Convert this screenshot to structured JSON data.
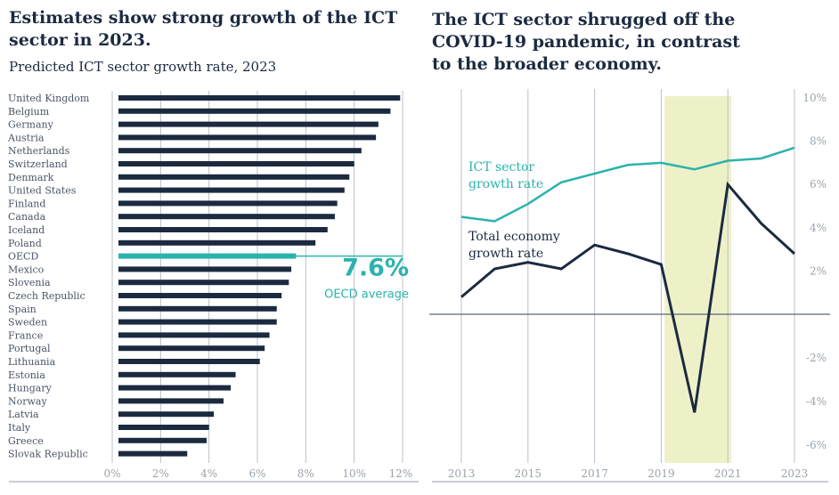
{
  "left_panel": {
    "title": "Estimates show strong growth of the ICT sector in 2023.",
    "subtitle": "Predicted ICT sector growth rate, 2023"
  },
  "right_panel": {
    "title": "The ICT sector shrugged off the COVID-19 pandemic, in contrast to the broader economy."
  },
  "colors": {
    "navy": "#1c2a40",
    "teal": "#2bb3ac",
    "highlight": "#eef1c8",
    "grid": "#b9c0c8"
  },
  "chart_data": [
    {
      "type": "bar",
      "orientation": "horizontal",
      "categories": [
        "United Kingdom",
        "Belgium",
        "Germany",
        "Austria",
        "Netherlands",
        "Switzerland",
        "Denmark",
        "United States",
        "Finland",
        "Canada",
        "Iceland",
        "Poland",
        "OECD",
        "Mexico",
        "Slovenia",
        "Czech Republic",
        "Spain",
        "Sweden",
        "France",
        "Portugal",
        "Lithuania",
        "Estonia",
        "Hungary",
        "Norway",
        "Latvia",
        "Italy",
        "Greece",
        "Slovak Republic"
      ],
      "values": [
        11.9,
        11.5,
        11.0,
        10.9,
        10.3,
        10.0,
        9.8,
        9.6,
        9.3,
        9.2,
        8.9,
        8.4,
        7.6,
        7.4,
        7.3,
        7.0,
        6.8,
        6.8,
        6.5,
        6.3,
        6.1,
        5.1,
        4.9,
        4.6,
        4.2,
        4.0,
        3.9,
        3.1
      ],
      "highlight": "OECD",
      "annotation": {
        "value_label": "7.6%",
        "text": "OECD average"
      },
      "xlim": [
        0,
        12
      ],
      "xticks": [
        "0%",
        "2%",
        "4%",
        "6%",
        "8%",
        "10%",
        "12%"
      ],
      "xtick_values": [
        0,
        2,
        4,
        6,
        8,
        10,
        12
      ],
      "grid": true
    },
    {
      "type": "line",
      "x": [
        2013,
        2014,
        2015,
        2016,
        2017,
        2018,
        2019,
        2020,
        2021,
        2022,
        2023
      ],
      "series": [
        {
          "name": "ICT sector growth rate",
          "values": [
            4.5,
            4.3,
            5.1,
            6.1,
            6.5,
            6.9,
            7.0,
            6.7,
            7.1,
            7.2,
            7.7
          ]
        },
        {
          "name": "Total economy growth rate",
          "values": [
            0.8,
            2.1,
            2.4,
            2.1,
            3.2,
            2.8,
            2.3,
            -4.5,
            6.0,
            4.2,
            2.8
          ]
        }
      ],
      "highlight_span": [
        2019.1,
        2021.1
      ],
      "ylim": [
        -6.5,
        10
      ],
      "yticks": [
        "10%",
        "8%",
        "6%",
        "4%",
        "2%",
        "-2%",
        "-4%",
        "-6%"
      ],
      "ytick_values": [
        10,
        8,
        6,
        4,
        2,
        -2,
        -4,
        -6
      ],
      "xticks": [
        "2013",
        "2015",
        "2017",
        "2019",
        "2021",
        "2023"
      ],
      "xtick_values": [
        2013,
        2015,
        2017,
        2019,
        2021,
        2023
      ],
      "grid": true,
      "legend_placement": "inline labels"
    }
  ]
}
